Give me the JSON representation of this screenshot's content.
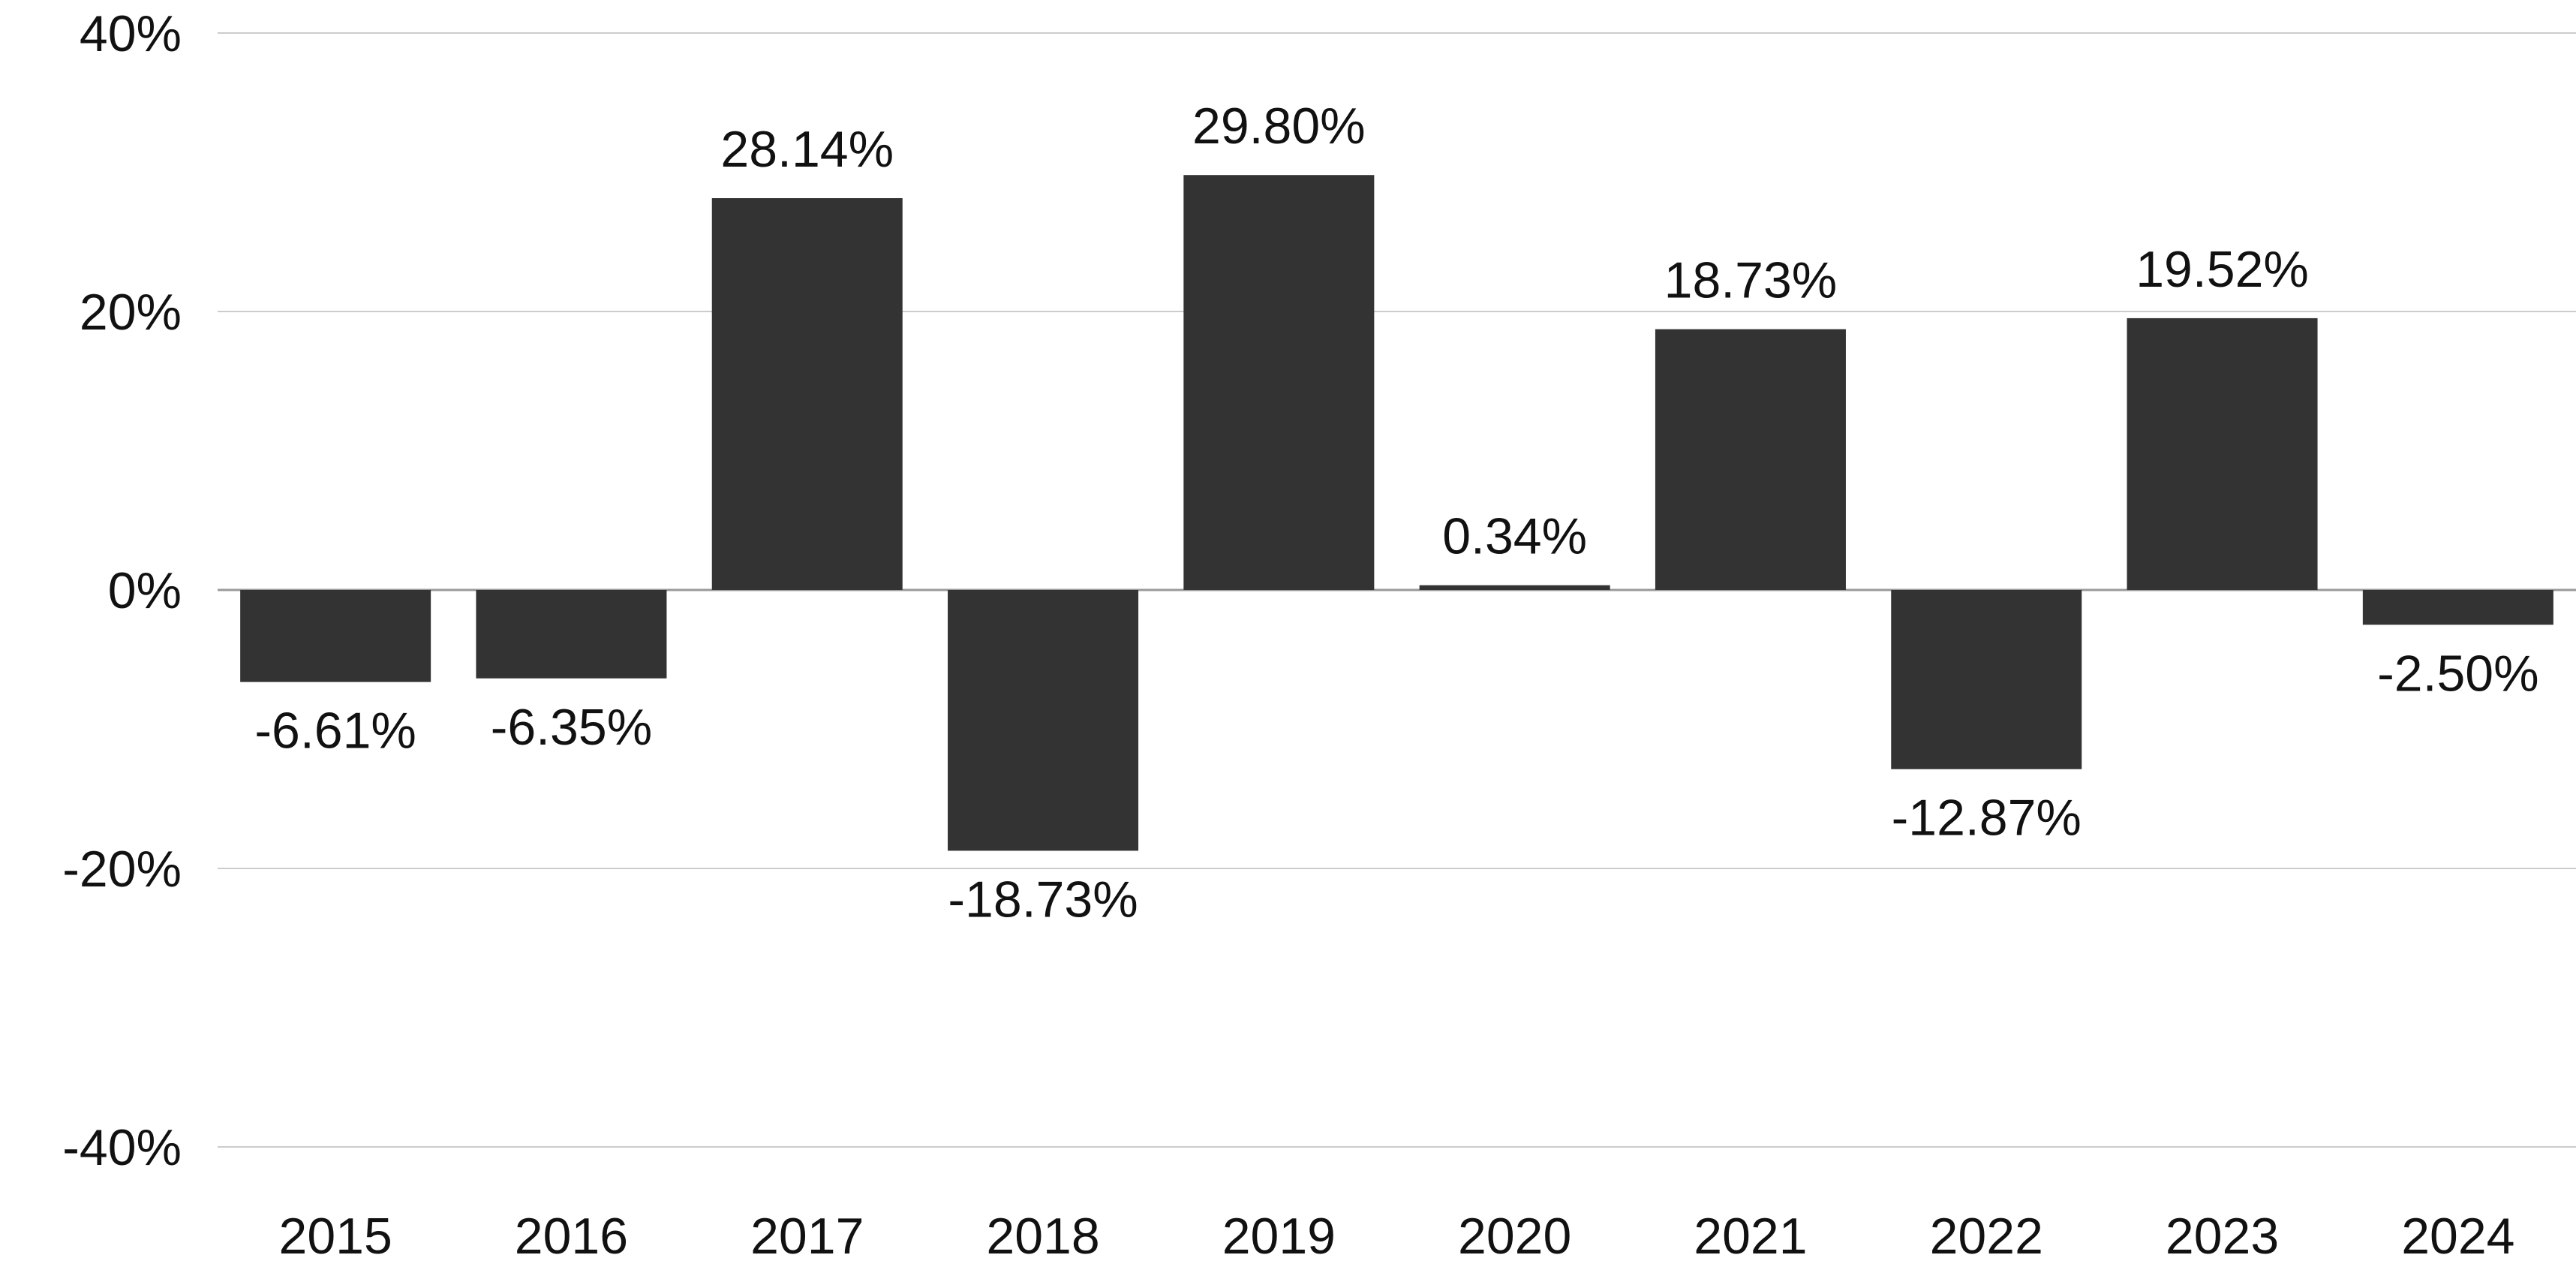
{
  "chart_data": {
    "type": "bar",
    "categories": [
      "2015",
      "2016",
      "2017",
      "2018",
      "2019",
      "2020",
      "2021",
      "2022",
      "2023",
      "2024"
    ],
    "values": [
      -6.61,
      -6.35,
      28.14,
      -18.73,
      29.8,
      0.34,
      18.73,
      -12.87,
      19.52,
      -2.5
    ],
    "data_labels": [
      "-6.61%",
      "-6.35%",
      "28.14%",
      "-18.73%",
      "29.80%",
      "0.34%",
      "18.73%",
      "-12.87%",
      "19.52%",
      "-2.50%"
    ],
    "ylim": [
      -40,
      40
    ],
    "yticks": [
      40,
      20,
      0,
      -20,
      -40
    ],
    "ytick_labels": [
      "40%",
      "20%",
      "0%",
      "-20%",
      "-40%"
    ],
    "title": "",
    "xlabel": "",
    "ylabel": "",
    "grid": true,
    "legend": "none",
    "colors": {
      "bar": "#333333",
      "grid": "#cccccc",
      "zero_line": "#999999",
      "text": "#111111"
    }
  }
}
